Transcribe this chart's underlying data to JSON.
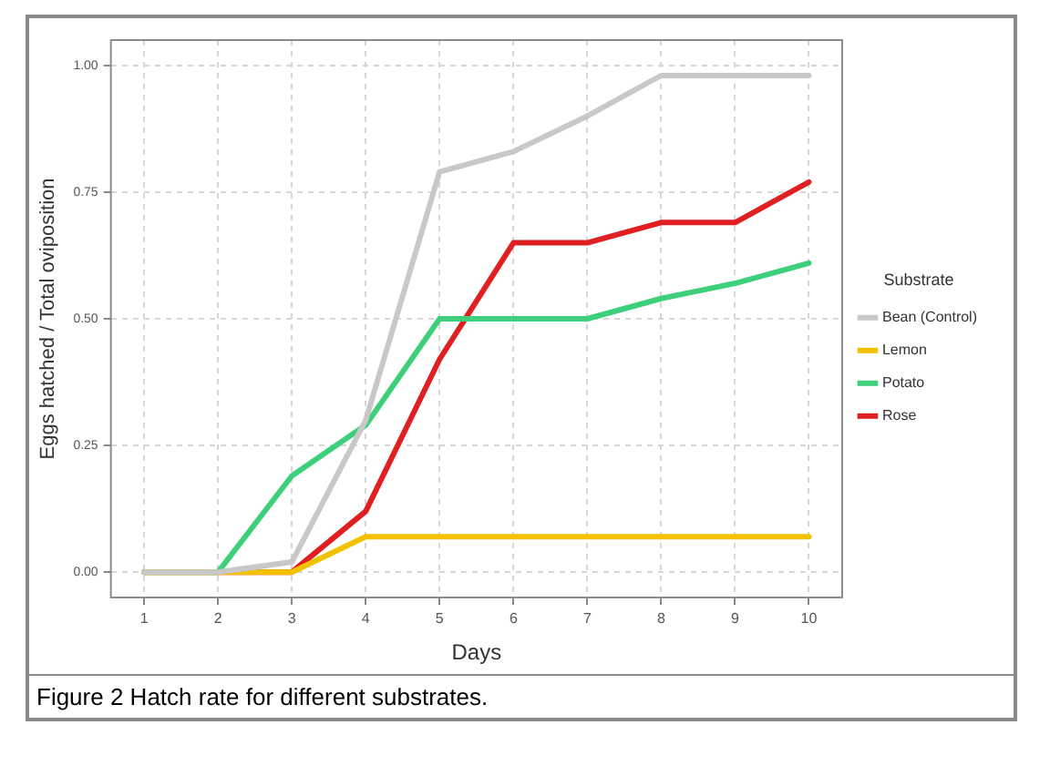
{
  "chart_data": {
    "type": "line",
    "xlabel": "Days",
    "ylabel": "Eggs hatched / Total oviposition",
    "legend_title": "Substrate",
    "legend": "right",
    "grid": true,
    "line_style": "solid",
    "marker": "none",
    "x": [
      1,
      2,
      3,
      4,
      5,
      6,
      7,
      8,
      9,
      10
    ],
    "xlim": [
      0.55,
      10.45
    ],
    "xticks": [
      1,
      2,
      3,
      4,
      5,
      6,
      7,
      8,
      9,
      10
    ],
    "ylim": [
      -0.05,
      1.05
    ],
    "yticks": [
      {
        "value": 0,
        "label": "0.00"
      },
      {
        "value": 0.25,
        "label": "0.25"
      },
      {
        "value": 0.5,
        "label": "0.50"
      },
      {
        "value": 0.75,
        "label": "0.75"
      },
      {
        "value": 1,
        "label": "1.00"
      }
    ],
    "series": [
      {
        "name": "Bean (Control)",
        "color": "#c8c8c8",
        "values": [
          0,
          0,
          0.02,
          0.3,
          0.79,
          0.83,
          0.9,
          0.98,
          0.98,
          0.98
        ]
      },
      {
        "name": "Lemon",
        "color": "#f2c200",
        "values": [
          0,
          0,
          0,
          0.07,
          0.07,
          0.07,
          0.07,
          0.07,
          0.07,
          0.07
        ]
      },
      {
        "name": "Potato",
        "color": "#3ecf7a",
        "values": [
          0,
          0,
          0.19,
          0.29,
          0.5,
          0.5,
          0.5,
          0.54,
          0.57,
          0.61
        ]
      },
      {
        "name": "Rose",
        "color": "#e02020",
        "values": [
          0,
          0,
          0,
          0.12,
          0.42,
          0.65,
          0.65,
          0.69,
          0.69,
          0.77
        ]
      }
    ],
    "annotations": [
      "Figure 2 Hatch rate for different substrates."
    ]
  }
}
